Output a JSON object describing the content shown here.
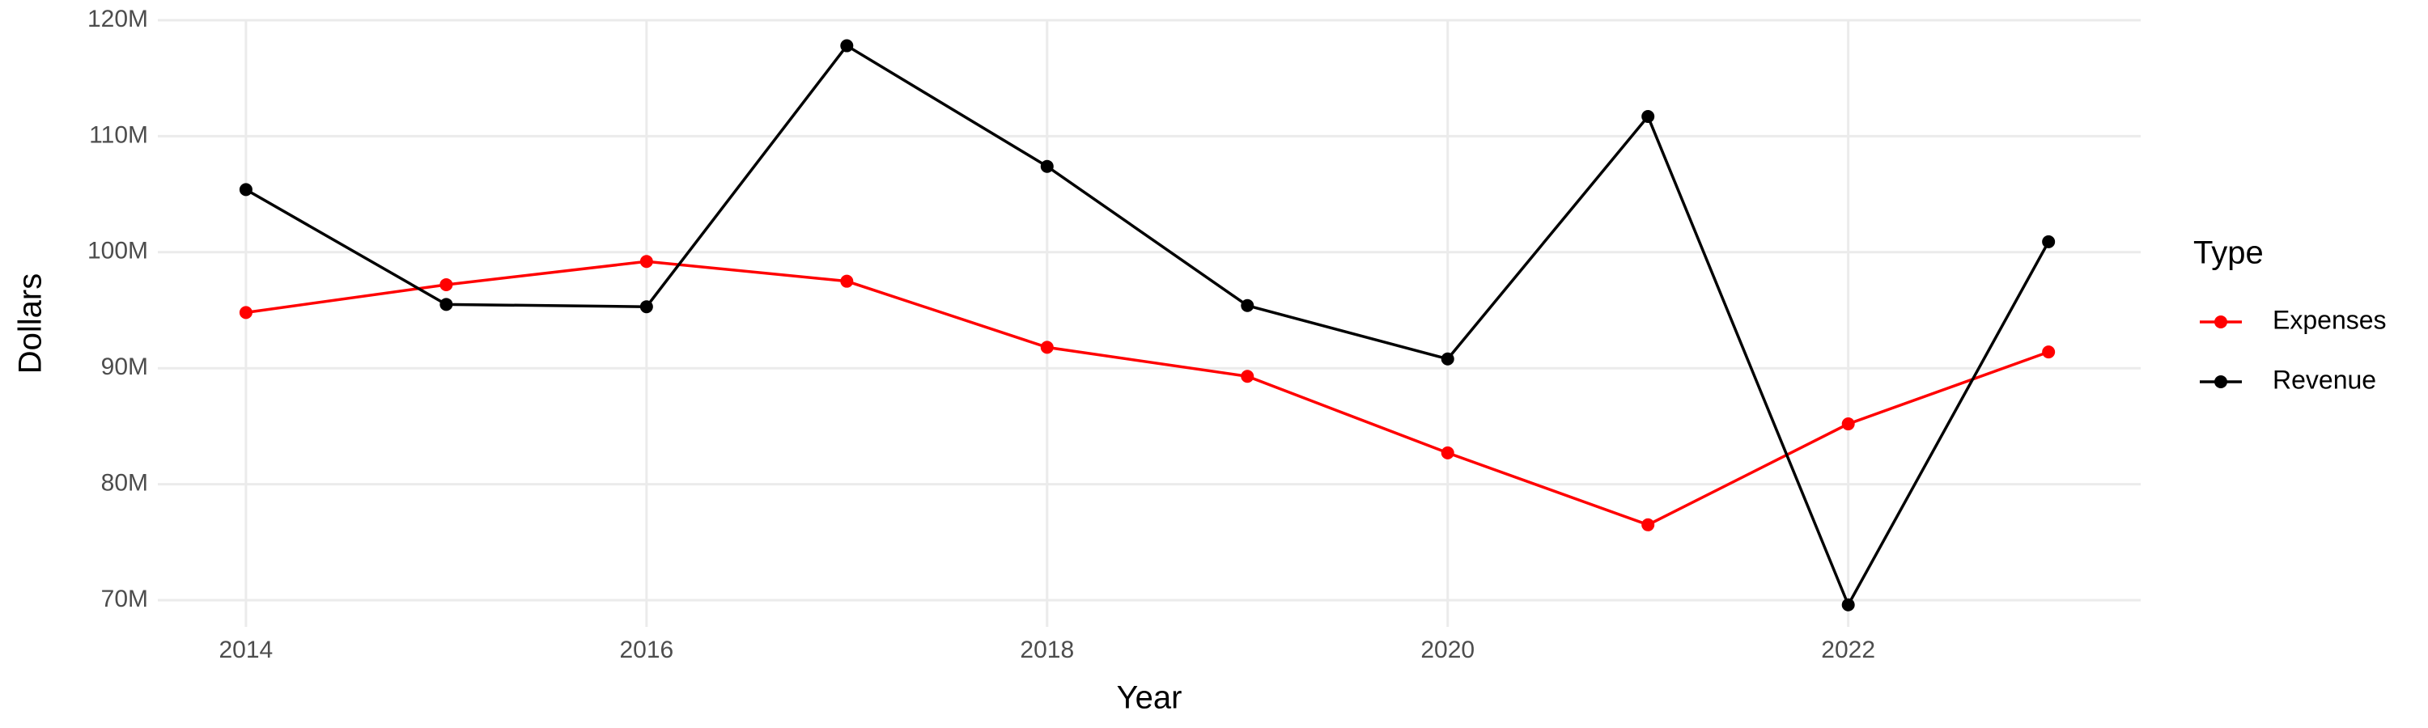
{
  "chart_data": {
    "type": "line",
    "x_label": "Year",
    "y_label": "Dollars",
    "legend_title": "Type",
    "x": [
      2014,
      2015,
      2016,
      2017,
      2018,
      2019,
      2020,
      2021,
      2022,
      2023
    ],
    "series": [
      {
        "name": "Expenses",
        "color": "#ff0000",
        "values": [
          94800000,
          97200000,
          99200000,
          97500000,
          91800000,
          89300000,
          82700000,
          76500000,
          85200000,
          91400000
        ]
      },
      {
        "name": "Revenue",
        "color": "#000000",
        "values": [
          105400000,
          95500000,
          95300000,
          117800000,
          107400000,
          95400000,
          90800000,
          111700000,
          69600000,
          100900000
        ]
      }
    ],
    "xlim": [
      2013.56,
      2023.46
    ],
    "xticks": [
      2014,
      2016,
      2018,
      2020,
      2022
    ],
    "ylim": [
      67700000,
      120000000
    ],
    "yticks": [
      {
        "value": 70000000,
        "label": "70M"
      },
      {
        "value": 80000000,
        "label": "80M"
      },
      {
        "value": 90000000,
        "label": "90M"
      },
      {
        "value": 100000000,
        "label": "100M"
      },
      {
        "value": 110000000,
        "label": "110M"
      },
      {
        "value": 120000000,
        "label": "120M"
      }
    ],
    "grid": true,
    "legend_position": "right"
  }
}
